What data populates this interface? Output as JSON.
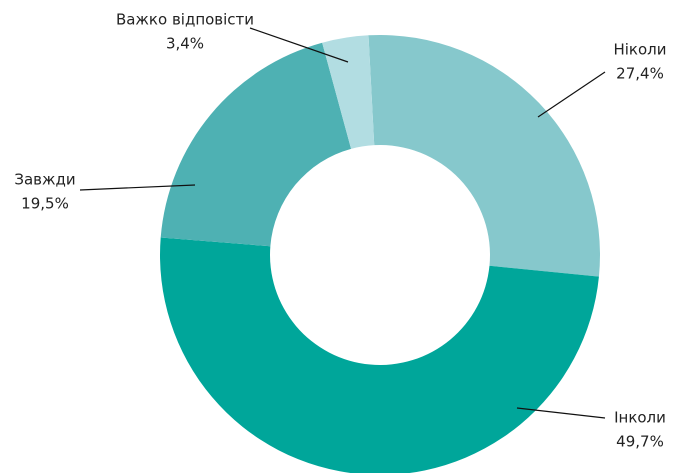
{
  "chart_data": {
    "type": "donut",
    "categories": [
      "Ніколи",
      "Інколи",
      "Завжди",
      "Важко відповісти"
    ],
    "values": [
      27.4,
      49.7,
      19.5,
      3.4
    ],
    "value_labels": [
      "27,4%",
      "49,7%",
      "19,5%",
      "3,4%"
    ],
    "colors": [
      "#86c8cc",
      "#00a69a",
      "#4eb1b3",
      "#b2dde2"
    ]
  }
}
